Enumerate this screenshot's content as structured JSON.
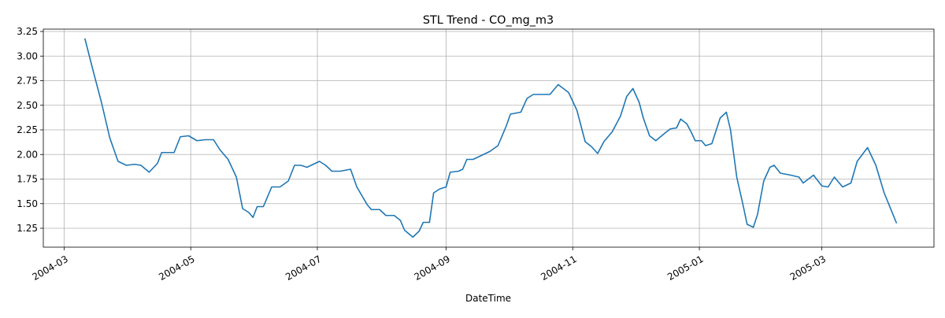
{
  "chart_data": {
    "type": "line",
    "title": "STL Trend - CO_mg_m3",
    "xlabel": "DateTime",
    "x": [
      "2004-03-11",
      "2004-03-15",
      "2004-03-19",
      "2004-03-23",
      "2004-03-27",
      "2004-03-31",
      "2004-04-04",
      "2004-04-07",
      "2004-04-11",
      "2004-04-15",
      "2004-04-17",
      "2004-04-23",
      "2004-04-26",
      "2004-04-30",
      "2004-05-04",
      "2004-05-08",
      "2004-05-12",
      "2004-05-15",
      "2004-05-19",
      "2004-05-23",
      "2004-05-26",
      "2004-05-29",
      "2004-05-31",
      "2004-06-02",
      "2004-06-05",
      "2004-06-09",
      "2004-06-13",
      "2004-06-17",
      "2004-06-20",
      "2004-06-23",
      "2004-06-26",
      "2004-06-28",
      "2004-07-02",
      "2004-07-05",
      "2004-07-08",
      "2004-07-12",
      "2004-07-17",
      "2004-07-20",
      "2004-07-25",
      "2004-07-27",
      "2004-07-31",
      "2004-08-03",
      "2004-08-07",
      "2004-08-10",
      "2004-08-12",
      "2004-08-16",
      "2004-08-19",
      "2004-08-21",
      "2004-08-24",
      "2004-08-26",
      "2004-08-29",
      "2004-09-01",
      "2004-09-03",
      "2004-09-07",
      "2004-09-09",
      "2004-09-11",
      "2004-09-14",
      "2004-09-18",
      "2004-09-22",
      "2004-09-26",
      "2004-09-30",
      "2004-10-02",
      "2004-10-07",
      "2004-10-10",
      "2004-10-13",
      "2004-10-21",
      "2004-10-25",
      "2004-10-30",
      "2004-11-03",
      "2004-11-07",
      "2004-11-10",
      "2004-11-13",
      "2004-11-16",
      "2004-11-20",
      "2004-11-24",
      "2004-11-27",
      "2004-11-30",
      "2004-12-03",
      "2004-12-05",
      "2004-12-08",
      "2004-12-11",
      "2004-12-15",
      "2004-12-18",
      "2004-12-21",
      "2004-12-23",
      "2004-12-26",
      "2004-12-28",
      "2004-12-30",
      "2005-01-02",
      "2005-01-04",
      "2005-01-07",
      "2005-01-11",
      "2005-01-14",
      "2005-01-16",
      "2005-01-19",
      "2005-01-22",
      "2005-01-24",
      "2005-01-27",
      "2005-01-29",
      "2005-02-01",
      "2005-02-04",
      "2005-02-06",
      "2005-02-09",
      "2005-02-14",
      "2005-02-18",
      "2005-02-20",
      "2005-02-25",
      "2005-03-01",
      "2005-03-04",
      "2005-03-07",
      "2005-03-11",
      "2005-03-15",
      "2005-03-18",
      "2005-03-23",
      "2005-03-27",
      "2005-03-31",
      "2005-04-06"
    ],
    "values": [
      3.18,
      2.85,
      2.53,
      2.17,
      1.93,
      1.89,
      1.9,
      1.89,
      1.82,
      1.91,
      2.02,
      2.02,
      2.18,
      2.19,
      2.14,
      2.15,
      2.15,
      2.05,
      1.95,
      1.77,
      1.45,
      1.41,
      1.36,
      1.47,
      1.47,
      1.67,
      1.67,
      1.73,
      1.89,
      1.89,
      1.87,
      1.89,
      1.93,
      1.89,
      1.83,
      1.83,
      1.85,
      1.67,
      1.49,
      1.44,
      1.44,
      1.38,
      1.38,
      1.33,
      1.23,
      1.16,
      1.22,
      1.31,
      1.31,
      1.61,
      1.65,
      1.67,
      1.82,
      1.83,
      1.85,
      1.95,
      1.95,
      1.99,
      2.03,
      2.09,
      2.29,
      2.41,
      2.43,
      2.57,
      2.61,
      2.61,
      2.71,
      2.63,
      2.45,
      2.13,
      2.08,
      2.01,
      2.13,
      2.23,
      2.39,
      2.59,
      2.67,
      2.53,
      2.37,
      2.19,
      2.14,
      2.21,
      2.26,
      2.27,
      2.36,
      2.31,
      2.23,
      2.14,
      2.14,
      2.09,
      2.11,
      2.37,
      2.43,
      2.25,
      1.77,
      1.49,
      1.29,
      1.26,
      1.39,
      1.73,
      1.87,
      1.89,
      1.81,
      1.79,
      1.77,
      1.71,
      1.79,
      1.68,
      1.67,
      1.77,
      1.67,
      1.71,
      1.93,
      2.07,
      1.89,
      1.61,
      1.3
    ],
    "color": "#1f77b4",
    "xlim": [
      "2004-02-20",
      "2005-04-24"
    ],
    "xticks": [
      "2004-03",
      "2004-05",
      "2004-07",
      "2004-09",
      "2004-11",
      "2005-01",
      "2005-03"
    ],
    "ylim": [
      1.058,
      3.274
    ],
    "yticks": [
      1.25,
      {
        "value": 1.5,
        "label": "1.50"
      },
      1.75,
      {
        "value": 2,
        "label": "2.00"
      },
      2.25,
      {
        "value": 2.5,
        "label": "2.50"
      },
      2.75,
      {
        "value": 3,
        "label": "3.00"
      },
      3.25
    ],
    "grid": true
  }
}
